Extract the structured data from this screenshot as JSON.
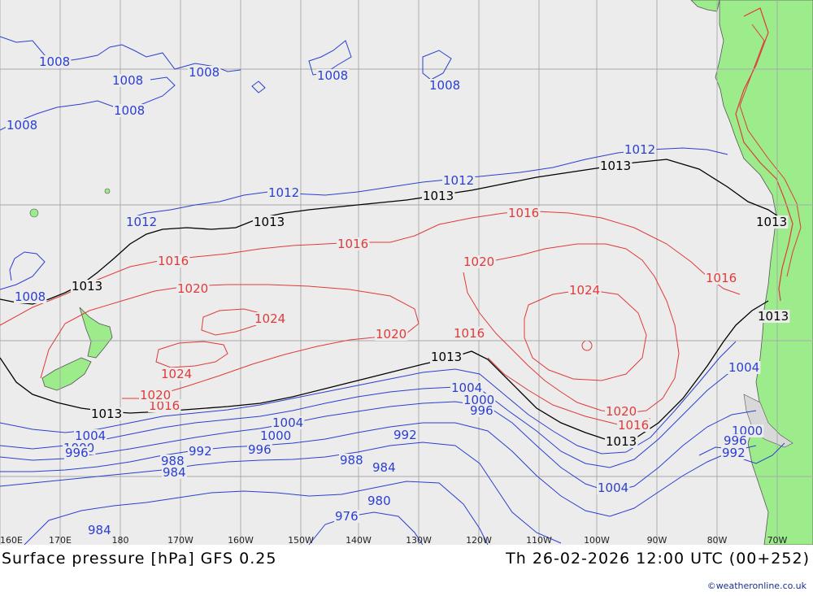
{
  "title": "Surface pressure [hPa] GFS 0.25",
  "valid_time": "Th 26-02-2026 12:00 UTC (00+252)",
  "credit": "©weatheronline.co.uk",
  "colors": {
    "ocean": "#ececec",
    "land": "#9cec8c",
    "high": "#e03a3a",
    "low": "#2a3fd0",
    "ref": "#000000",
    "grid": "#a8a8a8"
  },
  "longitude_labels": [
    "160E",
    "170E",
    "180",
    "170W",
    "160W",
    "150W",
    "140W",
    "130W",
    "120W",
    "110W",
    "100W",
    "90W",
    "80W",
    "70W"
  ],
  "isobar_labels": [
    {
      "id": "1008-a",
      "text": "1008",
      "kind": "low"
    },
    {
      "id": "1008-b",
      "text": "1008",
      "kind": "low"
    },
    {
      "id": "1008-c",
      "text": "1008",
      "kind": "low"
    },
    {
      "id": "1008-d",
      "text": "1008",
      "kind": "low"
    },
    {
      "id": "1008-e",
      "text": "1008",
      "kind": "low"
    },
    {
      "id": "1008-f",
      "text": "1008",
      "kind": "low"
    },
    {
      "id": "1008-g",
      "text": "1008",
      "kind": "low"
    },
    {
      "id": "1008-h",
      "text": "1008",
      "kind": "low"
    },
    {
      "id": "1012-a",
      "text": "1012",
      "kind": "low"
    },
    {
      "id": "1012-b",
      "text": "1012",
      "kind": "low"
    },
    {
      "id": "1012-c",
      "text": "1012",
      "kind": "low"
    },
    {
      "id": "1012-d",
      "text": "1012",
      "kind": "low"
    },
    {
      "id": "1013-a",
      "text": "1013",
      "kind": "ref"
    },
    {
      "id": "1013-b",
      "text": "1013",
      "kind": "ref"
    },
    {
      "id": "1013-c",
      "text": "1013",
      "kind": "ref"
    },
    {
      "id": "1013-d",
      "text": "1013",
      "kind": "ref"
    },
    {
      "id": "1013-e",
      "text": "1013",
      "kind": "ref"
    },
    {
      "id": "1013-f",
      "text": "1013",
      "kind": "ref"
    },
    {
      "id": "1013-g",
      "text": "1013",
      "kind": "ref"
    },
    {
      "id": "1013-h",
      "text": "1013",
      "kind": "ref"
    },
    {
      "id": "1013-i",
      "text": "1013",
      "kind": "ref"
    },
    {
      "id": "1016-a",
      "text": "1016",
      "kind": "high"
    },
    {
      "id": "1016-b",
      "text": "1016",
      "kind": "high"
    },
    {
      "id": "1016-c",
      "text": "1016",
      "kind": "high"
    },
    {
      "id": "1016-d",
      "text": "1016",
      "kind": "high"
    },
    {
      "id": "1016-e",
      "text": "1016",
      "kind": "high"
    },
    {
      "id": "1016-f",
      "text": "1016",
      "kind": "high"
    },
    {
      "id": "1016-g",
      "text": "1016",
      "kind": "high"
    },
    {
      "id": "1020-a",
      "text": "1020",
      "kind": "high"
    },
    {
      "id": "1020-b",
      "text": "1020",
      "kind": "high"
    },
    {
      "id": "1020-c",
      "text": "1020",
      "kind": "high"
    },
    {
      "id": "1020-d",
      "text": "1020",
      "kind": "high"
    },
    {
      "id": "1020-e",
      "text": "1020",
      "kind": "high"
    },
    {
      "id": "1024-a",
      "text": "1024",
      "kind": "high"
    },
    {
      "id": "1024-b",
      "text": "1024",
      "kind": "high"
    },
    {
      "id": "1024-c",
      "text": "1024",
      "kind": "high"
    },
    {
      "id": "1004-a",
      "text": "1004",
      "kind": "low"
    },
    {
      "id": "1004-b",
      "text": "1004",
      "kind": "low"
    },
    {
      "id": "1004-c",
      "text": "1004",
      "kind": "low"
    },
    {
      "id": "1004-d",
      "text": "1004",
      "kind": "low"
    },
    {
      "id": "1004-e",
      "text": "1004",
      "kind": "low"
    },
    {
      "id": "1000-a",
      "text": "1000",
      "kind": "low"
    },
    {
      "id": "1000-b",
      "text": "1000",
      "kind": "low"
    },
    {
      "id": "1000-c",
      "text": "1000",
      "kind": "low"
    },
    {
      "id": "1000-d",
      "text": "1000",
      "kind": "low"
    },
    {
      "id": "996-a",
      "text": "996",
      "kind": "low"
    },
    {
      "id": "996-b",
      "text": "996",
      "kind": "low"
    },
    {
      "id": "996-c",
      "text": "996",
      "kind": "low"
    },
    {
      "id": "996-d",
      "text": "996",
      "kind": "low"
    },
    {
      "id": "992-a",
      "text": "992",
      "kind": "low"
    },
    {
      "id": "992-b",
      "text": "992",
      "kind": "low"
    },
    {
      "id": "992-c",
      "text": "992",
      "kind": "low"
    },
    {
      "id": "988-a",
      "text": "988",
      "kind": "low"
    },
    {
      "id": "988-b",
      "text": "988",
      "kind": "low"
    },
    {
      "id": "984-a",
      "text": "984",
      "kind": "low"
    },
    {
      "id": "984-b",
      "text": "984",
      "kind": "low"
    },
    {
      "id": "984-c",
      "text": "984",
      "kind": "low"
    },
    {
      "id": "980-a",
      "text": "980",
      "kind": "low"
    },
    {
      "id": "976-a",
      "text": "976",
      "kind": "low"
    }
  ]
}
